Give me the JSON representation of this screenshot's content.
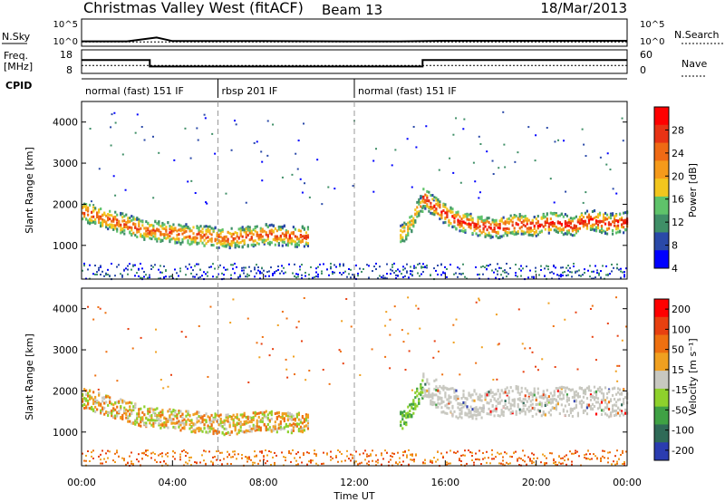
{
  "header": {
    "station": "Christmas Valley West (fitACF)",
    "beam": "Beam 13",
    "date": "18/Mar/2013"
  },
  "noise_panel": {
    "left_label": "N.Sky",
    "right_label": "N.Search",
    "left_ticks": [
      "10^5",
      "10^0"
    ],
    "right_ticks": [
      "10^5",
      "10^0"
    ]
  },
  "freq_panel": {
    "left_label_1": "Freq.",
    "left_label_2": "[MHz]",
    "right_label": "Nave",
    "left_ticks": [
      "18",
      "8"
    ],
    "right_ticks": [
      "60",
      "0"
    ]
  },
  "cpid": {
    "label": "CPID",
    "segments": [
      {
        "start_hour": 0,
        "end_hour": 6,
        "label": "normal (fast) 151 IF"
      },
      {
        "start_hour": 6,
        "end_hour": 12,
        "label": "rbsp 201 IF"
      },
      {
        "start_hour": 12,
        "end_hour": 24,
        "label": "normal (fast) 151 IF"
      }
    ]
  },
  "power_panel": {
    "ylabel": "Slant Range [km]",
    "colorbar_label": "Power [dB]",
    "colorbar_ticks": [
      "28",
      "24",
      "20",
      "16",
      "12",
      "8",
      "4"
    ]
  },
  "velocity_panel": {
    "ylabel": "Slant Range [km]",
    "colorbar_label": "Velocity [m s⁻¹]",
    "colorbar_ticks": [
      "200",
      "100",
      "50",
      "15",
      "-15",
      "-50",
      "-100",
      "-200"
    ]
  },
  "x_axis": {
    "label": "Time UT",
    "ticks": [
      "00:00",
      "04:00",
      "08:00",
      "12:00",
      "16:00",
      "20:00",
      "00:00"
    ]
  },
  "y_ticks": [
    "4000",
    "3000",
    "2000",
    "1000"
  ],
  "colors": {
    "power_scale": [
      "#0000ff",
      "#2a49a8",
      "#3f8f67",
      "#5fc36a",
      "#f2c61e",
      "#f59a1b",
      "#ef6a14",
      "#e83314",
      "#ff0000"
    ],
    "velocity_scale": [
      "#2b3cb0",
      "#2f6a57",
      "#3fa144",
      "#8ed12c",
      "#c8c8c0",
      "#f0a020",
      "#ee7010",
      "#e84010",
      "#ff0000"
    ],
    "noise_line": "#000000",
    "grey": "#c8c8c0"
  },
  "chart_data": [
    {
      "type": "line",
      "title": "",
      "x_range_hours": [
        0,
        24
      ],
      "series": [
        {
          "name": "N.Sky",
          "x": [
            0,
            2,
            3.3,
            4,
            8,
            12,
            14,
            16,
            20,
            24
          ],
          "y_log10": [
            0.9,
            0.9,
            1.6,
            0.95,
            0.95,
            0.9,
            0.9,
            1.0,
            1.0,
            1.0
          ]
        },
        {
          "name": "N.Search",
          "x": [
            0,
            24
          ],
          "y_log10": [
            0.8,
            0.8
          ]
        }
      ]
    },
    {
      "type": "line",
      "title": "",
      "x_range_hours": [
        0,
        24
      ],
      "series": [
        {
          "name": "Freq",
          "x": [
            0,
            3,
            3,
            15,
            15,
            24
          ],
          "y": [
            14,
            14,
            10,
            10,
            14,
            14
          ]
        },
        {
          "name": "Nave",
          "x": [
            0,
            24
          ],
          "y": [
            20,
            20
          ]
        }
      ]
    },
    {
      "type": "heatmap",
      "title": "",
      "xlabel": "Time UT",
      "ylabel": "Slant Range [km]",
      "x_range_hours": [
        0,
        24
      ],
      "ylim_km": [
        180,
        4500
      ],
      "colorbar": {
        "label": "Power [dB]",
        "range": [
          0,
          30
        ]
      },
      "bands": [
        {
          "start": 0,
          "end": 10,
          "center_km": [
            1850,
            1700,
            1550,
            1400,
            1350,
            1300,
            1250,
            1200,
            1250,
            1300,
            1250,
            1250
          ],
          "thick_km": 500,
          "power_db": 20
        },
        {
          "start": 14,
          "end": 15,
          "center_km": [
            1300,
            1400,
            1600,
            1900,
            2100
          ],
          "thick_km": 450,
          "power_db": 14
        },
        {
          "start": 15,
          "end": 24,
          "center_km": [
            2200,
            1850,
            1600,
            1500,
            1450,
            1550,
            1500,
            1600,
            1500,
            1650,
            1550,
            1600
          ],
          "thick_km": 500,
          "power_db": 24
        }
      ]
    },
    {
      "type": "heatmap",
      "title": "",
      "xlabel": "Time UT",
      "ylabel": "Slant Range [km]",
      "x_range_hours": [
        0,
        24
      ],
      "ylim_km": [
        180,
        4500
      ],
      "colorbar": {
        "label": "Velocity [m s⁻¹]",
        "range": [
          -200,
          200
        ]
      },
      "bands": [
        {
          "start": 0,
          "end": 10,
          "center_km": [
            1850,
            1700,
            1550,
            1400,
            1350,
            1300,
            1250,
            1200,
            1250,
            1300,
            1250,
            1250
          ],
          "thick_km": 500,
          "velocity": -30
        },
        {
          "start": 14,
          "end": 15,
          "center_km": [
            1300,
            1400,
            1600,
            1900,
            2100
          ],
          "thick_km": 450,
          "velocity": 40
        },
        {
          "start": 15,
          "end": 24,
          "center_km": [
            2200,
            1850,
            1700,
            1700,
            1750,
            1800,
            1750,
            1800,
            1750,
            1800,
            1750,
            1800
          ],
          "thick_km": 700,
          "velocity": 0
        }
      ]
    }
  ]
}
